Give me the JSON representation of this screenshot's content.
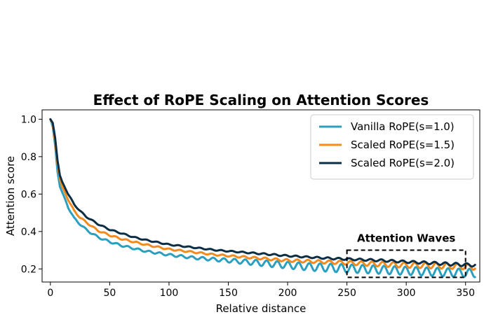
{
  "chart_data": {
    "type": "line",
    "title": "Effect of RoPE Scaling on Attention Scores",
    "xlabel": "Relative distance",
    "ylabel": "Attention score",
    "xlim": [
      -7,
      362
    ],
    "ylim": [
      0.13,
      1.05
    ],
    "xticks": [
      0,
      50,
      100,
      150,
      200,
      250,
      300,
      350
    ],
    "yticks": [
      0.2,
      0.4,
      0.6,
      0.8,
      1.0
    ],
    "xtick_labels": [
      "0",
      "50",
      "100",
      "150",
      "200",
      "250",
      "300",
      "350"
    ],
    "ytick_labels": [
      "0.2",
      "0.4",
      "0.6",
      "0.8",
      "1.0"
    ],
    "grid": false,
    "legend_position": "top-right",
    "series": [
      {
        "name": "Vanilla RoPE(s=1.0)",
        "color": "#2a9fbf",
        "x": [
          0,
          2,
          4,
          6,
          8,
          10,
          15,
          20,
          25,
          30,
          40,
          50,
          60,
          70,
          80,
          100,
          120,
          140,
          160,
          180,
          200,
          220,
          240,
          260,
          280,
          300,
          320,
          340,
          358
        ],
        "y": [
          1.0,
          0.96,
          0.86,
          0.72,
          0.64,
          0.61,
          0.53,
          0.47,
          0.44,
          0.41,
          0.37,
          0.345,
          0.325,
          0.31,
          0.295,
          0.275,
          0.26,
          0.25,
          0.24,
          0.23,
          0.22,
          0.21,
          0.205,
          0.2,
          0.195,
          0.19,
          0.185,
          0.18,
          0.178
        ],
        "wave_amplitude": [
          0,
          0,
          0,
          0,
          0,
          0,
          0.004,
          0.005,
          0.005,
          0.005,
          0.005,
          0.005,
          0.005,
          0.005,
          0.005,
          0.006,
          0.007,
          0.009,
          0.012,
          0.016,
          0.018,
          0.02,
          0.022,
          0.022,
          0.022,
          0.022,
          0.022,
          0.022,
          0.022
        ]
      },
      {
        "name": "Scaled RoPE(s=1.5)",
        "color": "#f28a1e",
        "x": [
          0,
          2,
          4,
          6,
          8,
          10,
          15,
          20,
          25,
          30,
          40,
          50,
          60,
          70,
          80,
          100,
          120,
          140,
          160,
          180,
          200,
          220,
          240,
          260,
          280,
          300,
          320,
          340,
          358
        ],
        "y": [
          1.0,
          0.97,
          0.88,
          0.76,
          0.68,
          0.64,
          0.57,
          0.51,
          0.475,
          0.45,
          0.405,
          0.38,
          0.36,
          0.345,
          0.33,
          0.305,
          0.29,
          0.275,
          0.265,
          0.255,
          0.245,
          0.24,
          0.235,
          0.23,
          0.225,
          0.22,
          0.218,
          0.215,
          0.21
        ],
        "wave_amplitude": [
          0,
          0,
          0,
          0,
          0,
          0,
          0.003,
          0.004,
          0.004,
          0.004,
          0.004,
          0.004,
          0.004,
          0.004,
          0.004,
          0.004,
          0.004,
          0.004,
          0.005,
          0.006,
          0.007,
          0.008,
          0.009,
          0.011,
          0.013,
          0.014,
          0.015,
          0.015,
          0.015
        ]
      },
      {
        "name": "Scaled RoPE(s=2.0)",
        "color": "#0b2e45",
        "x": [
          0,
          2,
          4,
          6,
          8,
          10,
          15,
          20,
          25,
          30,
          40,
          50,
          60,
          70,
          80,
          100,
          120,
          140,
          160,
          180,
          200,
          220,
          240,
          260,
          280,
          300,
          320,
          340,
          358
        ],
        "y": [
          1.0,
          0.98,
          0.9,
          0.78,
          0.7,
          0.665,
          0.6,
          0.545,
          0.51,
          0.48,
          0.44,
          0.41,
          0.39,
          0.37,
          0.355,
          0.33,
          0.315,
          0.3,
          0.29,
          0.28,
          0.27,
          0.262,
          0.255,
          0.25,
          0.245,
          0.238,
          0.232,
          0.225,
          0.22
        ],
        "wave_amplitude": [
          0,
          0,
          0,
          0,
          0,
          0,
          0.003,
          0.003,
          0.003,
          0.003,
          0.003,
          0.003,
          0.003,
          0.003,
          0.003,
          0.003,
          0.003,
          0.003,
          0.003,
          0.004,
          0.004,
          0.004,
          0.005,
          0.005,
          0.006,
          0.006,
          0.007,
          0.008,
          0.008
        ]
      }
    ],
    "annotations": [
      {
        "text": "Attention Waves",
        "box_x": [
          250,
          350
        ],
        "box_y": [
          0.155,
          0.3
        ],
        "style": "dashed"
      }
    ]
  }
}
